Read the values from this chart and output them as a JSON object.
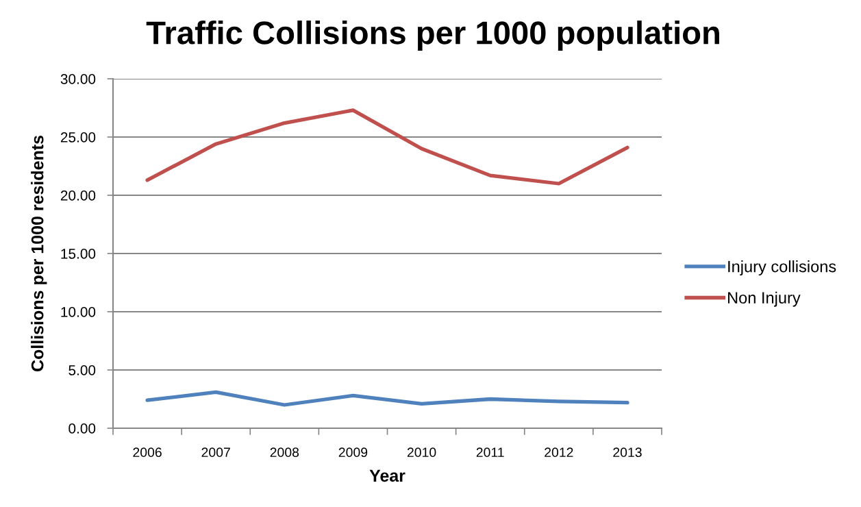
{
  "chart_data": {
    "type": "line",
    "title": "Traffic Collisions per 1000 population",
    "xlabel": "Year",
    "ylabel": "Collisions per 1000 residents",
    "categories": [
      "2006",
      "2007",
      "2008",
      "2009",
      "2010",
      "2011",
      "2012",
      "2013"
    ],
    "series": [
      {
        "name": "Injury collisions",
        "color": "#4f81bd",
        "values": [
          2.4,
          3.1,
          2.0,
          2.8,
          2.1,
          2.5,
          2.3,
          2.2
        ]
      },
      {
        "name": "Non Injury",
        "color": "#c0504d",
        "values": [
          21.3,
          24.4,
          26.2,
          27.3,
          24.0,
          21.7,
          21.0,
          24.1
        ]
      }
    ],
    "ylim": [
      0,
      30
    ],
    "yticks": [
      {
        "value": 0,
        "label": "0.00"
      },
      {
        "value": 5,
        "label": "5.00"
      },
      {
        "value": 10,
        "label": "10.00"
      },
      {
        "value": 15,
        "label": "15.00"
      },
      {
        "value": 20,
        "label": "20.00"
      },
      {
        "value": 25,
        "label": "25.00"
      },
      {
        "value": 30,
        "label": "30.00"
      }
    ],
    "grid": "y",
    "legend": "right"
  }
}
